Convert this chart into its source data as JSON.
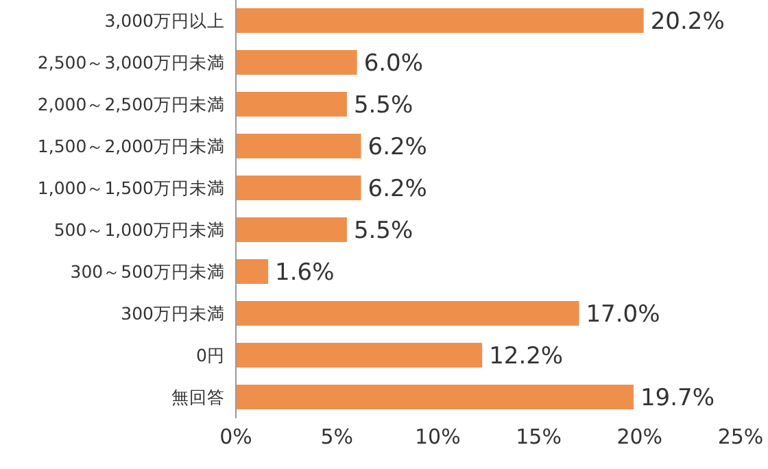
{
  "chart_data": {
    "type": "bar",
    "orientation": "horizontal",
    "categories": [
      "3,000万円以上",
      "2,500～3,000万円未満",
      "2,000～2,500万円未満",
      "1,500～2,000万円未満",
      "1,000～1,500万円未満",
      "500～1,000万円未満",
      "300～500万円未満",
      "300万円未満",
      "0円",
      "無回答"
    ],
    "values": [
      20.2,
      6.0,
      5.5,
      6.2,
      6.2,
      5.5,
      1.6,
      17.0,
      12.2,
      19.7
    ],
    "value_labels": [
      "20.2%",
      "6.0%",
      "5.5%",
      "6.2%",
      "6.2%",
      "5.5%",
      "1.6%",
      "17.0%",
      "12.2%",
      "19.7%"
    ],
    "color": "#ef8f4c",
    "xlim": [
      0,
      25
    ],
    "xticks": [
      {
        "value": 0,
        "label": "0%"
      },
      {
        "value": 5,
        "label": "5%"
      },
      {
        "value": 10,
        "label": "10%"
      },
      {
        "value": 15,
        "label": "15%"
      },
      {
        "value": 20,
        "label": "20%"
      },
      {
        "value": 25,
        "label": "25%"
      }
    ],
    "grid": false
  }
}
